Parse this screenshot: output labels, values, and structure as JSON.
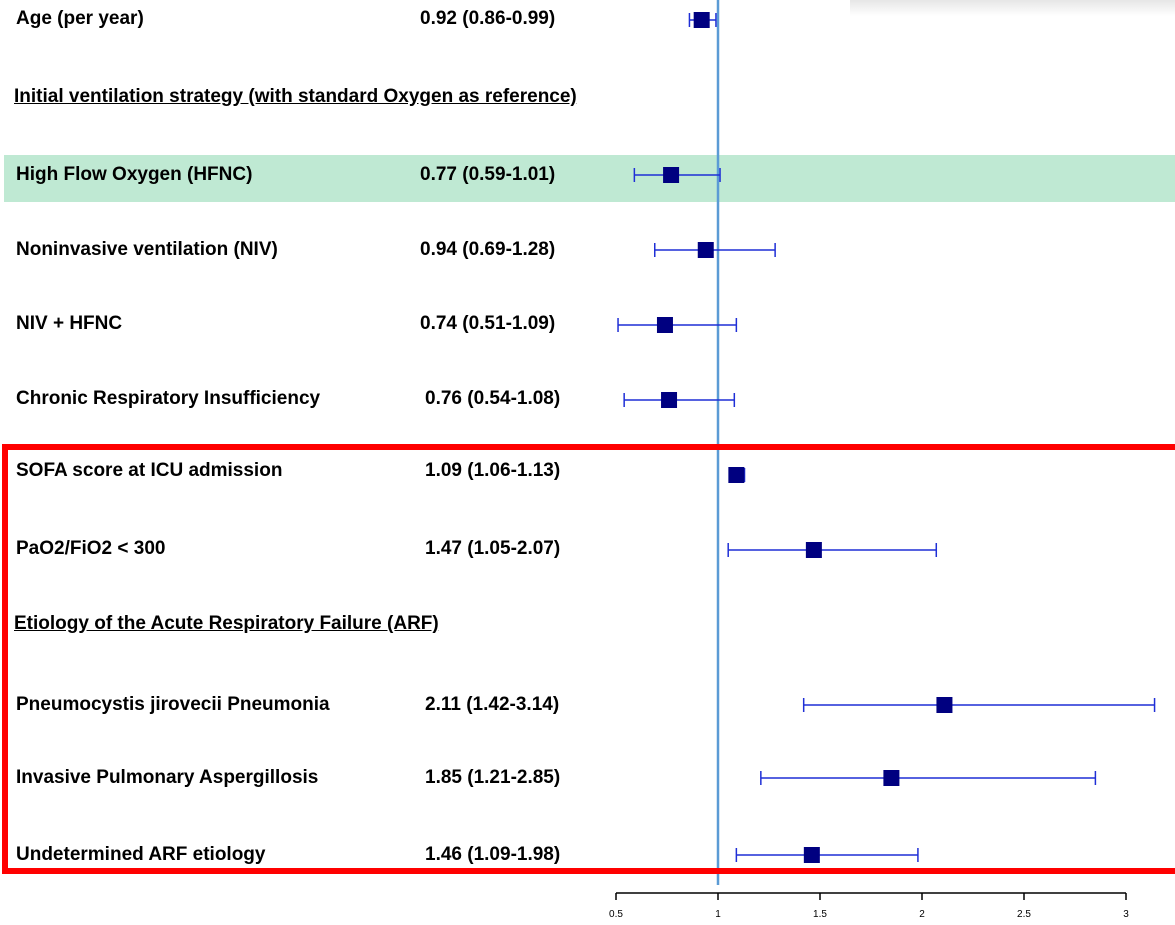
{
  "chart_data": {
    "type": "forest",
    "reference_line": 1,
    "xlim": [
      0.5,
      3
    ],
    "x_ticks": [
      "0.5",
      "1",
      "1.5",
      "2",
      "2.5",
      "3"
    ],
    "headers": [
      "Initial ventilation strategy (with standard Oxygen as reference)",
      "Etiology of the Acute Respiratory Failure (ARF)"
    ],
    "rows": [
      {
        "label": "Age (per year)",
        "text": "0.92 (0.86-0.99)",
        "est": 0.92,
        "lo": 0.86,
        "hi": 0.99
      },
      {
        "label": "High Flow Oxygen (HFNC)",
        "text": "0.77 (0.59-1.01)",
        "est": 0.77,
        "lo": 0.59,
        "hi": 1.01,
        "highlighted": true
      },
      {
        "label": "Noninvasive ventilation (NIV)",
        "text": "0.94 (0.69-1.28)",
        "est": 0.94,
        "lo": 0.69,
        "hi": 1.28
      },
      {
        "label": "NIV + HFNC",
        "text": "0.74 (0.51-1.09)",
        "est": 0.74,
        "lo": 0.51,
        "hi": 1.09
      },
      {
        "label": "Chronic Respiratory Insufficiency",
        "text": "0.76 (0.54-1.08)",
        "est": 0.76,
        "lo": 0.54,
        "hi": 1.08
      },
      {
        "label": "SOFA score at ICU admission",
        "text": "1.09 (1.06-1.13)",
        "est": 1.09,
        "lo": 1.06,
        "hi": 1.13
      },
      {
        "label": "PaO2/FiO2 < 300",
        "text": "1.47 (1.05-2.07)",
        "est": 1.47,
        "lo": 1.05,
        "hi": 2.07
      },
      {
        "label": "Pneumocystis jirovecii Pneumonia",
        "text": "2.11 (1.42-3.14)",
        "est": 2.11,
        "lo": 1.42,
        "hi": 3.14
      },
      {
        "label": "Invasive Pulmonary Aspergillosis",
        "text": "1.85 (1.21-2.85)",
        "est": 1.85,
        "lo": 1.21,
        "hi": 2.85
      },
      {
        "label": "Undetermined ARF etiology",
        "text": "1.46 (1.09-1.98)",
        "est": 1.46,
        "lo": 1.09,
        "hi": 1.98
      }
    ],
    "colors": {
      "marker": "#000080",
      "ci_line": "#1f2fd6",
      "reference_line": "#5b9bd5",
      "highlight": "#bfe9d3",
      "frame": "#ff0000"
    }
  }
}
